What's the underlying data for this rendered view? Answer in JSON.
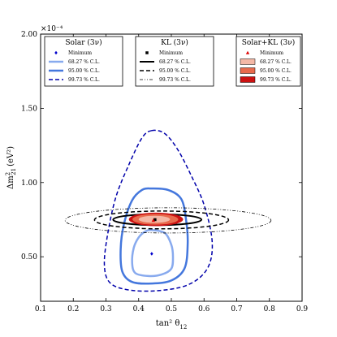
{
  "chart_data": {
    "type": "contour",
    "xlabel": "tan² θ",
    "xlabel_sub": "12",
    "ylabel": "Δm",
    "ylabel_sub": "21",
    "ylabel_sup": "2",
    "ylabel_unit": "(eV²)",
    "y_multiplier": "×10⁻⁴",
    "xlim": [
      0.1,
      0.9
    ],
    "ylim": [
      0.2,
      2.0
    ],
    "x_ticks": [
      0.1,
      0.2,
      0.3,
      0.4,
      0.5,
      0.6,
      0.7,
      0.8,
      0.9
    ],
    "x_tick_labels": [
      "0.1",
      "0.2",
      "0.3",
      "0.4",
      "0.5",
      "0.6",
      "0.7",
      "0.8",
      "0.9"
    ],
    "y_ticks": [
      0.5,
      1.0,
      1.5,
      2.0
    ],
    "y_tick_labels": [
      "0.50",
      "1.00",
      "1.50",
      "2.00"
    ],
    "grid": false,
    "legends": [
      {
        "title": "Solar (3ν)",
        "position": "top-left",
        "entries": [
          {
            "label": "Minimum",
            "kind": "marker",
            "shape": "diamond",
            "color": "#0000cc"
          },
          {
            "label": "68.27 % C.L.",
            "kind": "line",
            "style": "solid",
            "color": "#88aaee",
            "width": 2.5
          },
          {
            "label": "95.00 % C.L.",
            "kind": "line",
            "style": "solid",
            "color": "#4477dd",
            "width": 2.5
          },
          {
            "label": "99.73 % C.L.",
            "kind": "line",
            "style": "dashed",
            "color": "#0000aa",
            "width": 1.5
          }
        ]
      },
      {
        "title": "KL (3ν)",
        "position": "top-center",
        "entries": [
          {
            "label": "Minimum",
            "kind": "marker",
            "shape": "square",
            "color": "#000000"
          },
          {
            "label": "68.27 % C.L.",
            "kind": "line",
            "style": "solid",
            "color": "#000000",
            "width": 2
          },
          {
            "label": "95.00 % C.L.",
            "kind": "line",
            "style": "dashed",
            "color": "#000000",
            "width": 1.5
          },
          {
            "label": "99.73 % C.L.",
            "kind": "line",
            "style": "dashdotdot",
            "color": "#000000",
            "width": 0.8
          }
        ]
      },
      {
        "title": "Solar+KL (3ν)",
        "position": "top-right",
        "entries": [
          {
            "label": "Minimum",
            "kind": "marker",
            "shape": "triangle",
            "color": "#dd0000"
          },
          {
            "label": "68.27 % C.L.",
            "kind": "patch",
            "color": "#f4b8a6"
          },
          {
            "label": "95.00 % C.L.",
            "kind": "patch",
            "color": "#e86a4c"
          },
          {
            "label": "99.73 % C.L.",
            "kind": "patch",
            "color": "#cc1111"
          }
        ]
      }
    ],
    "series": [
      {
        "group": "Solar",
        "level": "99.73 % C.L.",
        "style": "dashed",
        "color": "#0000aa",
        "width": 1.5,
        "points": [
          [
            0.44,
            1.35
          ],
          [
            0.48,
            1.33
          ],
          [
            0.52,
            1.22
          ],
          [
            0.56,
            1.05
          ],
          [
            0.6,
            0.85
          ],
          [
            0.625,
            0.6
          ],
          [
            0.61,
            0.42
          ],
          [
            0.55,
            0.31
          ],
          [
            0.45,
            0.27
          ],
          [
            0.36,
            0.28
          ],
          [
            0.31,
            0.33
          ],
          [
            0.295,
            0.45
          ],
          [
            0.305,
            0.65
          ],
          [
            0.33,
            0.9
          ],
          [
            0.37,
            1.12
          ],
          [
            0.41,
            1.3
          ]
        ]
      },
      {
        "group": "Solar",
        "level": "95.00 % C.L.",
        "style": "solid",
        "color": "#4477dd",
        "width": 2.5,
        "points": [
          [
            0.44,
            0.96
          ],
          [
            0.49,
            0.95
          ],
          [
            0.53,
            0.89
          ],
          [
            0.545,
            0.75
          ],
          [
            0.55,
            0.58
          ],
          [
            0.54,
            0.42
          ],
          [
            0.5,
            0.34
          ],
          [
            0.44,
            0.32
          ],
          [
            0.38,
            0.33
          ],
          [
            0.35,
            0.4
          ],
          [
            0.345,
            0.55
          ],
          [
            0.355,
            0.72
          ],
          [
            0.38,
            0.88
          ],
          [
            0.41,
            0.95
          ]
        ]
      },
      {
        "group": "Solar",
        "level": "68.27 % C.L.",
        "style": "solid",
        "color": "#88aaee",
        "width": 2.5,
        "points": [
          [
            0.44,
            0.68
          ],
          [
            0.48,
            0.66
          ],
          [
            0.5,
            0.58
          ],
          [
            0.505,
            0.5
          ],
          [
            0.5,
            0.42
          ],
          [
            0.47,
            0.38
          ],
          [
            0.43,
            0.37
          ],
          [
            0.39,
            0.39
          ],
          [
            0.38,
            0.46
          ],
          [
            0.385,
            0.56
          ],
          [
            0.4,
            0.63
          ],
          [
            0.42,
            0.67
          ]
        ]
      },
      {
        "group": "KL",
        "level": "99.73 % C.L.",
        "style": "dashdotdot",
        "color": "#000000",
        "width": 0.8,
        "kind": "ellipse",
        "cx": 0.49,
        "cy": 0.745,
        "rx": 0.315,
        "ry": 0.085
      },
      {
        "group": "KL",
        "level": "95.00 % C.L.",
        "style": "dashed",
        "color": "#000000",
        "width": 1.5,
        "kind": "ellipse",
        "cx": 0.47,
        "cy": 0.748,
        "rx": 0.205,
        "ry": 0.06
      },
      {
        "group": "KL",
        "level": "68.27 % C.L.",
        "style": "solid",
        "color": "#000000",
        "width": 2,
        "kind": "ellipse",
        "cx": 0.457,
        "cy": 0.75,
        "rx": 0.135,
        "ry": 0.037
      },
      {
        "group": "Solar+KL",
        "level": "99.73 % C.L.",
        "kind": "ellipse-fill",
        "color": "#cc1111",
        "cx": 0.453,
        "cy": 0.752,
        "rx": 0.083,
        "ry": 0.045
      },
      {
        "group": "Solar+KL",
        "level": "95.00 % C.L.",
        "kind": "ellipse-fill",
        "color": "#e86a4c",
        "cx": 0.451,
        "cy": 0.752,
        "rx": 0.07,
        "ry": 0.036
      },
      {
        "group": "Solar+KL",
        "level": "68.27 % C.L.",
        "kind": "ellipse-fill",
        "color": "#f4b8a6",
        "cx": 0.448,
        "cy": 0.752,
        "rx": 0.048,
        "ry": 0.024
      }
    ],
    "minima": [
      {
        "group": "Solar",
        "x": 0.44,
        "y": 0.52,
        "shape": "diamond",
        "color": "#0000cc"
      },
      {
        "group": "KL",
        "x": 0.45,
        "y": 0.75,
        "shape": "square",
        "color": "#000000"
      },
      {
        "group": "Solar+KL",
        "x": 0.445,
        "y": 0.745,
        "shape": "triangle",
        "color": "#dd0000"
      }
    ]
  }
}
